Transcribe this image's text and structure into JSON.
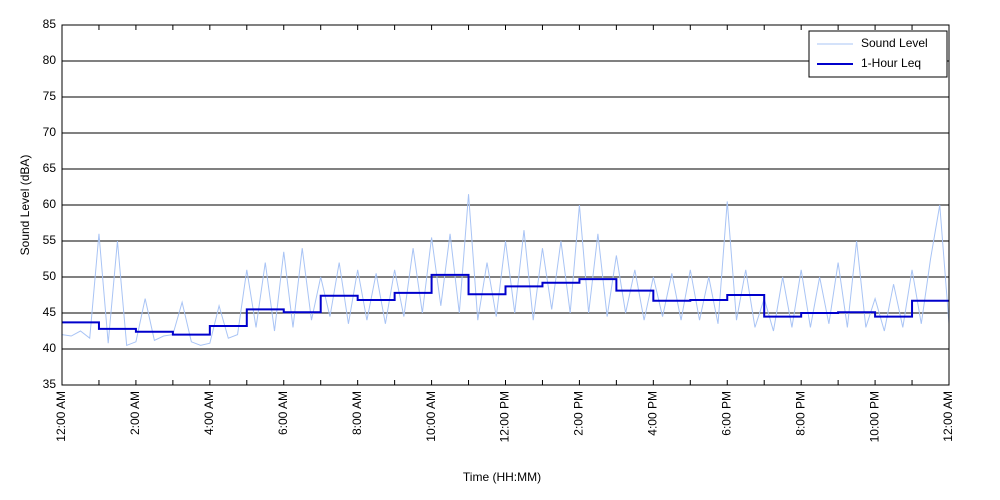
{
  "chart_data": {
    "type": "line",
    "xlabel": "Time (HH:MM)",
    "ylabel": "Sound Level (dBA)",
    "xlim": [
      0,
      24
    ],
    "ylim": [
      35,
      85
    ],
    "yticks": [
      35,
      40,
      45,
      50,
      55,
      60,
      65,
      70,
      75,
      80,
      85
    ],
    "xticks": [
      {
        "value": 0,
        "label": "12:00 AM"
      },
      {
        "value": 2,
        "label": "2:00 AM"
      },
      {
        "value": 4,
        "label": "4:00 AM"
      },
      {
        "value": 6,
        "label": "6:00 AM"
      },
      {
        "value": 8,
        "label": "8:00 AM"
      },
      {
        "value": 10,
        "label": "10:00 AM"
      },
      {
        "value": 12,
        "label": "12:00 PM"
      },
      {
        "value": 14,
        "label": "2:00 PM"
      },
      {
        "value": 16,
        "label": "4:00 PM"
      },
      {
        "value": 18,
        "label": "6:00 PM"
      },
      {
        "value": 20,
        "label": "8:00 PM"
      },
      {
        "value": 22,
        "label": "10:00 PM"
      },
      {
        "value": 24,
        "label": "12:00 AM"
      }
    ],
    "x_minor_ticks": [
      1,
      3,
      5,
      7,
      9,
      11,
      13,
      15,
      17,
      19,
      21,
      23
    ],
    "grid": true,
    "legend": "upper right",
    "series": [
      {
        "name": "Sound Level",
        "color": "#a9c4f5",
        "line_width": 1,
        "x": [
          0,
          0.25,
          0.5,
          0.75,
          1,
          1.25,
          1.5,
          1.75,
          2,
          2.25,
          2.5,
          2.75,
          3,
          3.25,
          3.5,
          3.75,
          4,
          4.25,
          4.5,
          4.75,
          5,
          5.25,
          5.5,
          5.75,
          6,
          6.25,
          6.5,
          6.75,
          7,
          7.25,
          7.5,
          7.75,
          8,
          8.25,
          8.5,
          8.75,
          9,
          9.25,
          9.5,
          9.75,
          10,
          10.25,
          10.5,
          10.75,
          11,
          11.25,
          11.5,
          11.75,
          12,
          12.25,
          12.5,
          12.75,
          13,
          13.25,
          13.5,
          13.75,
          14,
          14.25,
          14.5,
          14.75,
          15,
          15.25,
          15.5,
          15.75,
          16,
          16.25,
          16.5,
          16.75,
          17,
          17.25,
          17.5,
          17.75,
          18,
          18.25,
          18.5,
          18.75,
          19,
          19.25,
          19.5,
          19.75,
          20,
          20.25,
          20.5,
          20.75,
          21,
          21.25,
          21.5,
          21.75,
          22,
          22.25,
          22.5,
          22.75,
          23,
          23.25,
          23.5,
          23.75,
          24
        ],
        "values": [
          42.0,
          41.8,
          42.5,
          41.5,
          56.0,
          40.8,
          55.0,
          40.5,
          41.0,
          47.0,
          41.2,
          41.8,
          42.0,
          46.5,
          41.0,
          40.5,
          40.8,
          46.0,
          41.5,
          42.0,
          51.0,
          43.0,
          52.0,
          42.5,
          53.5,
          43.0,
          54.0,
          44.0,
          50.0,
          44.5,
          52.0,
          43.5,
          51.0,
          44.0,
          50.5,
          43.5,
          51.0,
          44.5,
          54.0,
          45.0,
          55.5,
          46.0,
          56.0,
          45.0,
          61.5,
          44.0,
          52.0,
          44.5,
          55.0,
          45.0,
          56.5,
          44.0,
          54.0,
          45.5,
          55.0,
          45.0,
          60.0,
          45.0,
          56.0,
          44.5,
          53.0,
          45.0,
          51.0,
          44.0,
          50.0,
          44.5,
          50.5,
          44.0,
          51.0,
          44.0,
          50.0,
          43.5,
          60.5,
          44.0,
          51.0,
          43.0,
          47.0,
          42.5,
          50.0,
          43.0,
          51.0,
          43.0,
          50.0,
          43.5,
          52.0,
          43.0,
          55.0,
          43.0,
          47.0,
          42.5,
          49.0,
          43.0,
          51.0,
          43.5,
          52.5,
          60.0,
          43.5
        ]
      },
      {
        "name": "1-Hour Leq",
        "color": "#0000cc",
        "line_width": 2,
        "step": "post",
        "x": [
          0,
          1,
          2,
          3,
          4,
          5,
          6,
          7,
          8,
          9,
          10,
          11,
          12,
          13,
          14,
          15,
          16,
          17,
          18,
          19,
          20,
          21,
          22,
          23
        ],
        "values": [
          43.7,
          42.8,
          42.4,
          42.0,
          43.2,
          45.5,
          45.1,
          47.4,
          46.8,
          47.8,
          50.3,
          47.6,
          48.7,
          49.2,
          49.7,
          48.1,
          46.7,
          46.8,
          47.5,
          44.5,
          45.0,
          45.1,
          44.5,
          46.7
        ]
      }
    ]
  }
}
